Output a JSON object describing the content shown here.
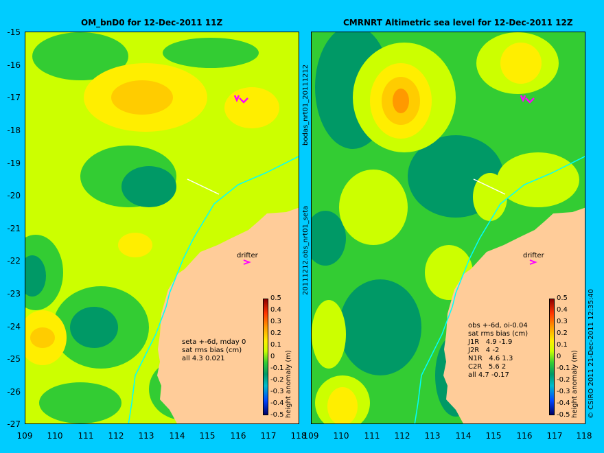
{
  "left_panel": {
    "title": "OM_bnD0 for 12-Dec-2011 11Z",
    "drifter_label": "drifter",
    "stats_lines": [
      "seta +-6d, mday 0",
      "sat rms bias (cm)",
      "all 4.3 0.021"
    ]
  },
  "right_panel": {
    "title": "CMRNRT Altimetric sea level  for 12-Dec-2011 12Z",
    "drifter_label": "drifter",
    "stats_lines": [
      "obs +-6d, oi-0.04",
      "sat rms bias (cm)",
      "J1R   4.9 -1.9",
      "J2R   4 -2",
      "N1R   4.6 1.3",
      "C2R   5.6 2",
      "all 4.7 -0.17"
    ]
  },
  "y_ticks": [
    "-15",
    "-16",
    "-17",
    "-18",
    "-19",
    "-20",
    "-21",
    "-22",
    "-23",
    "-24",
    "-25",
    "-26",
    "-27"
  ],
  "x_ticks": [
    "109",
    "110",
    "111",
    "112",
    "113",
    "114",
    "115",
    "116",
    "117",
    "118"
  ],
  "colorbar": {
    "label": "height anomaly (m)",
    "ticks": [
      "0.5",
      "0.4",
      "0.3",
      "0.2",
      "0.1",
      "0",
      "-0.1",
      "-0.2",
      "-0.3",
      "-0.4",
      "-0.5"
    ]
  },
  "middle_text": {
    "top": "bodas_nrt01_20111212",
    "bottom": "20111212.obs_nrt01_seta"
  },
  "credit": "© CSIRO 2011   21-Dec-2011 12:35:40",
  "colors": {
    "background": "#00ccff",
    "land": "#ffcc99",
    "ocean_base": "#ccff00",
    "positive_anomaly": "#ffcc00",
    "negative_anomaly": "#33cc33"
  }
}
